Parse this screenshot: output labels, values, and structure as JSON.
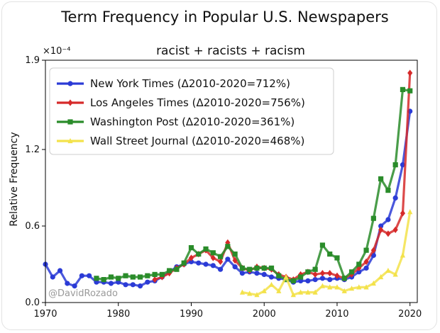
{
  "chart_data": {
    "type": "line",
    "title": "Term Frequency in Popular U.S. Newspapers",
    "subtitle": "racist + racists + racism",
    "ylabel": "Relative Frequency",
    "xlabel": "",
    "y_multiplier_label": "×10⁻⁴",
    "xlim": [
      1970,
      2021
    ],
    "ylim": [
      0.0,
      1.9
    ],
    "x_ticks": [
      1970,
      1980,
      1990,
      2000,
      2010,
      2020
    ],
    "y_ticks": [
      0.0,
      0.6,
      1.2,
      1.9
    ],
    "y_tick_labels": [
      "0.0",
      "0.6",
      "1.2",
      "1.9"
    ],
    "legend_position": "top-left",
    "watermark": "@DavidRozado",
    "series": [
      {
        "name": "New York Times (Δ2010-2020=712%)",
        "color": "#2b3bd6",
        "marker": "circle",
        "x": [
          1970,
          1971,
          1972,
          1973,
          1974,
          1975,
          1976,
          1977,
          1978,
          1979,
          1980,
          1981,
          1982,
          1983,
          1984,
          1985,
          1986,
          1987,
          1988,
          1989,
          1990,
          1991,
          1992,
          1993,
          1994,
          1995,
          1996,
          1997,
          1998,
          1999,
          2000,
          2001,
          2002,
          2003,
          2004,
          2005,
          2006,
          2007,
          2008,
          2009,
          2010,
          2011,
          2012,
          2013,
          2014,
          2015,
          2016,
          2017,
          2018,
          2019,
          2020
        ],
        "values": [
          0.3,
          0.2,
          0.25,
          0.15,
          0.13,
          0.21,
          0.21,
          0.16,
          0.16,
          0.15,
          0.16,
          0.14,
          0.14,
          0.13,
          0.16,
          0.17,
          0.2,
          0.24,
          0.28,
          0.3,
          0.32,
          0.31,
          0.3,
          0.29,
          0.26,
          0.34,
          0.28,
          0.23,
          0.24,
          0.23,
          0.22,
          0.2,
          0.19,
          0.18,
          0.16,
          0.17,
          0.17,
          0.18,
          0.19,
          0.18,
          0.19,
          0.18,
          0.2,
          0.24,
          0.27,
          0.37,
          0.6,
          0.65,
          0.82,
          1.08,
          1.5
        ]
      },
      {
        "name": "Los Angeles Times (Δ2010-2020=756%)",
        "color": "#d62a2a",
        "marker": "diamond",
        "x": [
          1985,
          1986,
          1987,
          1988,
          1989,
          1990,
          1991,
          1992,
          1993,
          1994,
          1995,
          1996,
          1997,
          1998,
          1999,
          2000,
          2001,
          2002,
          2003,
          2004,
          2005,
          2006,
          2007,
          2008,
          2009,
          2010,
          2011,
          2012,
          2013,
          2014,
          2015,
          2016,
          2017,
          2018,
          2019,
          2020
        ],
        "values": [
          0.18,
          0.2,
          0.23,
          0.27,
          0.3,
          0.35,
          0.38,
          0.41,
          0.35,
          0.32,
          0.47,
          0.33,
          0.27,
          0.25,
          0.28,
          0.27,
          0.26,
          0.22,
          0.2,
          0.18,
          0.22,
          0.24,
          0.22,
          0.23,
          0.23,
          0.21,
          0.19,
          0.22,
          0.27,
          0.32,
          0.41,
          0.57,
          0.54,
          0.57,
          0.7,
          1.8
        ]
      },
      {
        "name": "Washington Post (Δ2010-2020=361%)",
        "color": "#2a8c2a",
        "marker": "square",
        "x": [
          1977,
          1978,
          1979,
          1980,
          1981,
          1982,
          1983,
          1984,
          1985,
          1986,
          1987,
          1988,
          1989,
          1990,
          1991,
          1992,
          1993,
          1994,
          1995,
          1996,
          1997,
          1998,
          1999,
          2000,
          2001,
          2002,
          2003,
          2004,
          2005,
          2006,
          2007,
          2008,
          2009,
          2010,
          2011,
          2012,
          2013,
          2014,
          2015,
          2016,
          2017,
          2018,
          2019,
          2020
        ],
        "values": [
          0.19,
          0.18,
          0.2,
          0.19,
          0.21,
          0.2,
          0.2,
          0.21,
          0.22,
          0.22,
          0.25,
          0.26,
          0.31,
          0.43,
          0.38,
          0.42,
          0.39,
          0.36,
          0.44,
          0.38,
          0.27,
          0.26,
          0.27,
          0.27,
          0.27,
          0.21,
          0.18,
          0.17,
          0.2,
          0.24,
          0.26,
          0.45,
          0.38,
          0.35,
          0.19,
          0.24,
          0.3,
          0.41,
          0.66,
          0.97,
          0.88,
          1.08,
          1.67,
          1.66
        ]
      },
      {
        "name": "Wall Street Journal (Δ2010-2020=468%)",
        "color": "#f3e24a",
        "marker": "triangle",
        "x": [
          1997,
          1998,
          1999,
          2000,
          2001,
          2002,
          2003,
          2004,
          2005,
          2006,
          2007,
          2008,
          2009,
          2010,
          2011,
          2012,
          2013,
          2014,
          2015,
          2016,
          2017,
          2018,
          2019,
          2020
        ],
        "values": [
          0.08,
          0.07,
          0.06,
          0.09,
          0.14,
          0.09,
          0.2,
          0.06,
          0.08,
          0.08,
          0.08,
          0.13,
          0.12,
          0.12,
          0.09,
          0.11,
          0.12,
          0.12,
          0.15,
          0.2,
          0.25,
          0.22,
          0.37,
          0.71
        ]
      }
    ]
  }
}
